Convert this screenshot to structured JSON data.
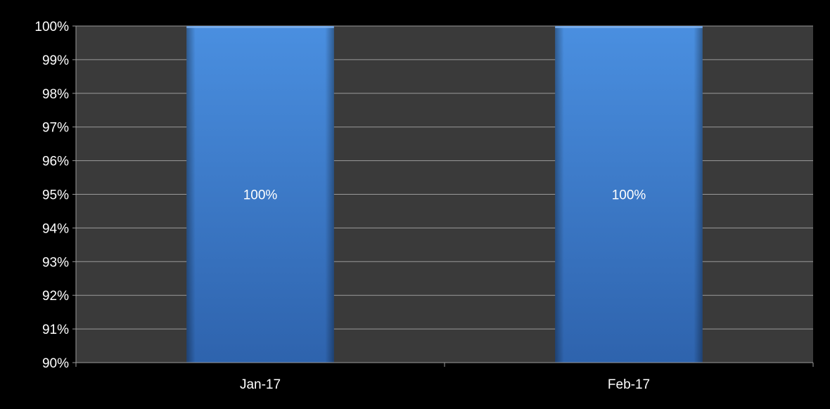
{
  "chart_data": {
    "type": "bar",
    "categories": [
      "Jan-17",
      "Feb-17"
    ],
    "values": [
      1.0,
      1.0
    ],
    "data_labels": [
      "100%",
      "100%"
    ],
    "ylim": [
      0.9,
      1.0
    ],
    "yticks": [
      "90%",
      "91%",
      "92%",
      "93%",
      "94%",
      "95%",
      "96%",
      "97%",
      "98%",
      "99%",
      "100%"
    ],
    "title": "",
    "xlabel": "",
    "ylabel": "",
    "grid": true,
    "legend": "none"
  },
  "colors": {
    "background": "#000000",
    "plot_area": "#3a3a3a",
    "gridline": "#9a9a9a",
    "axis_text": "#ffffff",
    "bar_top": "#4a8fe0",
    "bar_bottom": "#2e63ad",
    "data_label": "#ffffff"
  }
}
